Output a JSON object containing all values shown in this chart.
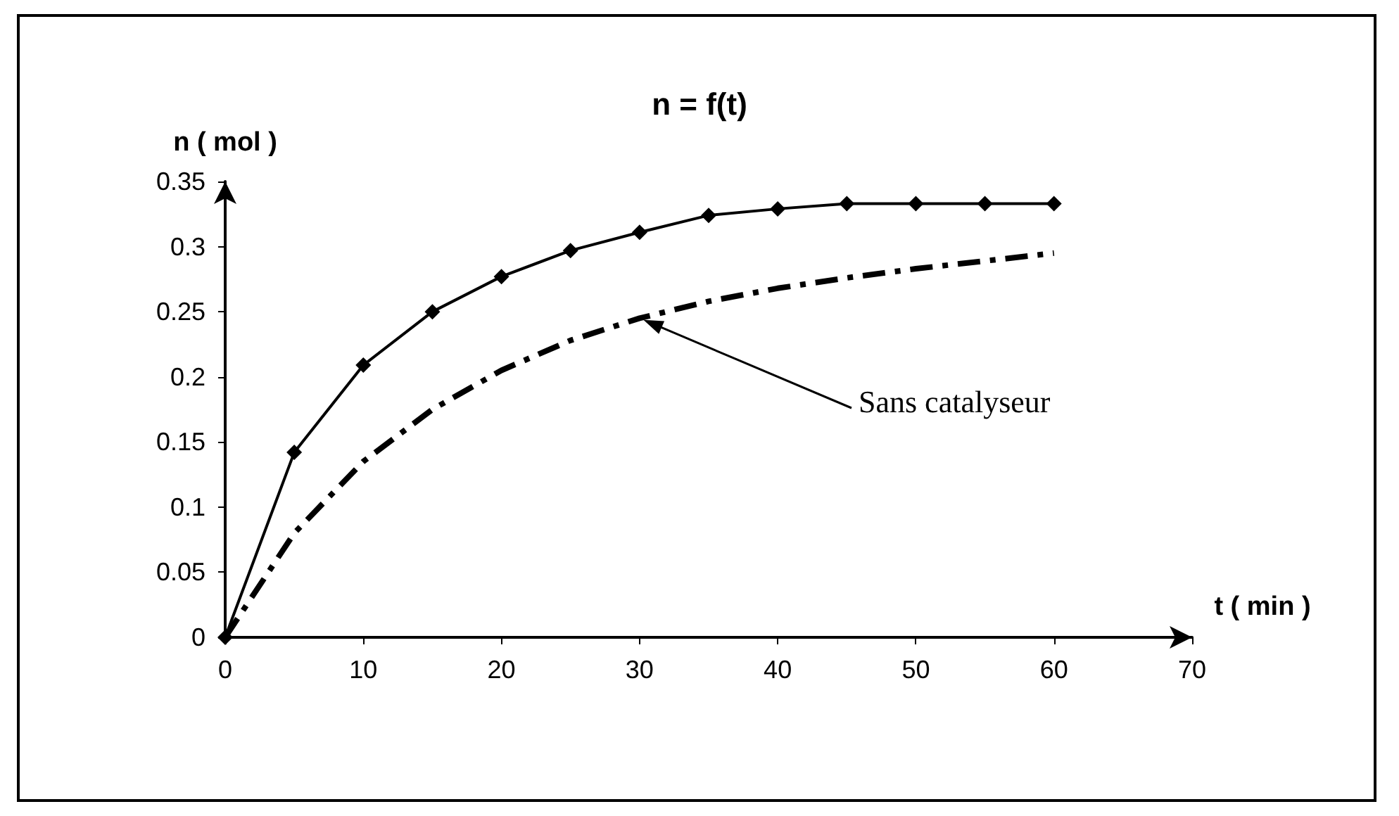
{
  "chart_data": {
    "type": "line",
    "title": "n = f(t)",
    "xlabel": "t ( min )",
    "ylabel": "n ( mol )",
    "x": [
      0,
      5,
      10,
      15,
      20,
      25,
      30,
      35,
      40,
      45,
      50,
      55,
      60
    ],
    "series": [
      {
        "color": "#000000",
        "marker": "diamond",
        "line_style": "solid",
        "values": [
          0,
          0.142,
          0.209,
          0.25,
          0.277,
          0.297,
          0.311,
          0.324,
          0.329,
          0.333,
          0.333,
          0.333,
          0.333
        ]
      },
      {
        "color": "#000000",
        "marker": "none",
        "line_style": "dashed",
        "values": [
          0,
          0.08,
          0.135,
          0.175,
          0.205,
          0.228,
          0.245,
          0.258,
          0.268,
          0.276,
          0.283,
          0.289,
          0.295
        ]
      }
    ],
    "annotations": [
      "Sans catalyseur"
    ],
    "xlim": [
      0,
      70
    ],
    "xticks": [
      0,
      10,
      20,
      30,
      40,
      50,
      60,
      70
    ],
    "ylim": [
      0,
      0.35
    ],
    "yticks": [
      0,
      0.05,
      0.1,
      0.15,
      0.2,
      0.25,
      0.3,
      0.35
    ],
    "grid": false
  }
}
